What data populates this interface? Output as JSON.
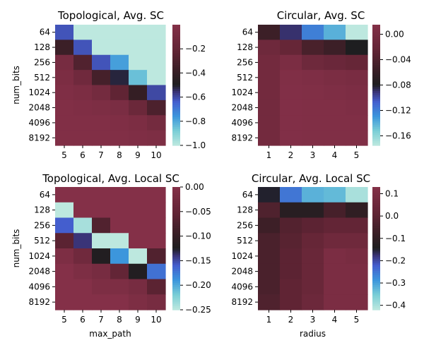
{
  "chart_data": [
    {
      "type": "heatmap",
      "title": "Topological, Avg. SC",
      "xlabel": "",
      "ylabel": "num_bits",
      "x": [
        "5",
        "6",
        "7",
        "8",
        "9",
        "10"
      ],
      "y": [
        "64",
        "128",
        "256",
        "512",
        "1024",
        "2048",
        "4096",
        "8192"
      ],
      "z": [
        [
          -0.62,
          -1.0,
          -1.0,
          -1.0,
          -1.0,
          -1.0
        ],
        [
          -0.37,
          -0.62,
          -1.0,
          -1.0,
          -1.0,
          -1.0
        ],
        [
          -0.08,
          -0.28,
          -0.62,
          -0.78,
          -1.0,
          -1.0
        ],
        [
          -0.05,
          -0.12,
          -0.33,
          -0.52,
          -0.85,
          -1.0
        ],
        [
          -0.03,
          -0.05,
          -0.1,
          -0.22,
          -0.4,
          -0.6
        ],
        [
          -0.02,
          -0.03,
          -0.04,
          -0.06,
          -0.15,
          -0.3
        ],
        [
          -0.02,
          -0.02,
          -0.02,
          -0.03,
          -0.05,
          -0.1
        ],
        [
          -0.02,
          -0.02,
          -0.02,
          -0.02,
          -0.03,
          -0.04
        ]
      ],
      "colorbar": {
        "min": -1.0,
        "max": 0.0,
        "ticks": [
          "−1.0",
          "−0.8",
          "−0.6",
          "−0.4",
          "−0.2"
        ]
      }
    },
    {
      "type": "heatmap",
      "title": "Circular, Avg. SC",
      "xlabel": "",
      "ylabel": "",
      "x": [
        "1",
        "2",
        "3",
        "4",
        "5"
      ],
      "y": [
        "64",
        "128",
        "256",
        "512",
        "1024",
        "2048",
        "4096",
        "8192"
      ],
      "z": [
        [
          -0.055,
          -0.09,
          -0.12,
          -0.14,
          -0.175
        ],
        [
          -0.01,
          -0.02,
          -0.045,
          -0.055,
          -0.08
        ],
        [
          -0.005,
          0.005,
          -0.01,
          -0.015,
          -0.02
        ],
        [
          -0.005,
          0.01,
          0.008,
          0.004,
          0.002
        ],
        [
          -0.005,
          0.012,
          0.01,
          0.008,
          0.006
        ],
        [
          -0.005,
          0.012,
          0.01,
          0.01,
          0.008
        ],
        [
          -0.005,
          0.012,
          0.01,
          0.01,
          0.01
        ],
        [
          -0.005,
          0.012,
          0.01,
          0.01,
          0.01
        ]
      ],
      "colorbar": {
        "min": -0.175,
        "max": 0.015,
        "ticks": [
          "−0.16",
          "−0.12",
          "−0.08",
          "−0.04",
          "0.00"
        ]
      }
    },
    {
      "type": "heatmap",
      "title": "Topological, Avg. Local SC",
      "xlabel": "max_path",
      "ylabel": "num_bits",
      "x": [
        "5",
        "6",
        "7",
        "8",
        "9",
        "10"
      ],
      "y": [
        "64",
        "128",
        "256",
        "512",
        "1024",
        "2048",
        "4096",
        "8192"
      ],
      "z": [
        [
          0.0,
          0.0,
          0.0,
          0.0,
          0.0,
          0.0
        ],
        [
          -0.25,
          0.0,
          0.0,
          0.0,
          0.0,
          0.0
        ],
        [
          -0.16,
          -0.24,
          -0.07,
          0.0,
          0.0,
          0.0
        ],
        [
          -0.06,
          -0.14,
          -0.25,
          -0.25,
          0.0,
          0.0
        ],
        [
          -0.01,
          -0.03,
          -0.12,
          -0.19,
          -0.25,
          -0.07
        ],
        [
          0.0,
          -0.01,
          -0.02,
          -0.05,
          -0.12,
          -0.17
        ],
        [
          0.0,
          0.0,
          -0.01,
          -0.01,
          -0.02,
          -0.06
        ],
        [
          0.0,
          0.0,
          0.0,
          0.0,
          -0.01,
          -0.02
        ]
      ],
      "colorbar": {
        "min": -0.25,
        "max": 0.0,
        "ticks": [
          "−0.25",
          "−0.20",
          "−0.15",
          "−0.10",
          "−0.05",
          "0.00"
        ]
      }
    },
    {
      "type": "heatmap",
      "title": "Circular, Avg. Local SC",
      "xlabel": "radius",
      "ylabel": "",
      "x": [
        "1",
        "2",
        "3",
        "4",
        "5"
      ],
      "y": [
        "64",
        "128",
        "256",
        "512",
        "1024",
        "2048",
        "4096",
        "8192"
      ],
      "z": [
        [
          -0.15,
          -0.25,
          -0.32,
          -0.33,
          -0.4
        ],
        [
          -0.03,
          -0.12,
          -0.12,
          -0.05,
          -0.1
        ],
        [
          -0.07,
          -0.02,
          0.0,
          0.02,
          0.02
        ],
        [
          -0.04,
          -0.01,
          0.03,
          0.06,
          0.06
        ],
        [
          -0.04,
          0.0,
          0.04,
          0.1,
          0.09
        ],
        [
          -0.04,
          0.0,
          0.04,
          0.1,
          0.1
        ],
        [
          -0.04,
          0.01,
          0.04,
          0.1,
          0.1
        ],
        [
          -0.03,
          0.01,
          0.05,
          0.1,
          0.1
        ]
      ],
      "colorbar": {
        "min": -0.42,
        "max": 0.13,
        "ticks": [
          "−0.4",
          "−0.3",
          "−0.2",
          "−0.1",
          "0.0",
          "0.1"
        ]
      }
    }
  ]
}
